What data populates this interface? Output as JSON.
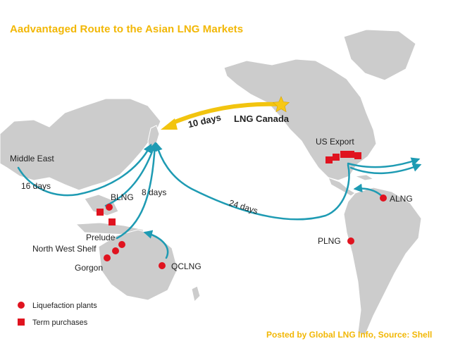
{
  "title": "Aadvantaged Route to the Asian LNG Markets",
  "credit": "Posted by Global LNG Info, Source: Shell",
  "colors": {
    "land": "#cccccc",
    "route": "#1e9bb3",
    "highlight_route": "#f2c40f",
    "plant": "#e0131f",
    "purchase": "#e0131f",
    "star": "#f7c815"
  },
  "places": {
    "lng_canada": "LNG Canada",
    "us_export": "US Export",
    "middle_east": "Middle East",
    "blng": "BLNG",
    "prelude": "Prelude",
    "north_west_shelf": "North West Shelf",
    "gorgon": "Gorgon",
    "qclng": "QCLNG",
    "alng": "ALNG",
    "plng": "PLNG"
  },
  "routes": {
    "canada": "10 days",
    "middle_east": "16 days",
    "australia": "8 days",
    "atlantic": "24 days"
  },
  "legend": {
    "plants": "Liquefaction plants",
    "purchases": "Term purchases"
  }
}
